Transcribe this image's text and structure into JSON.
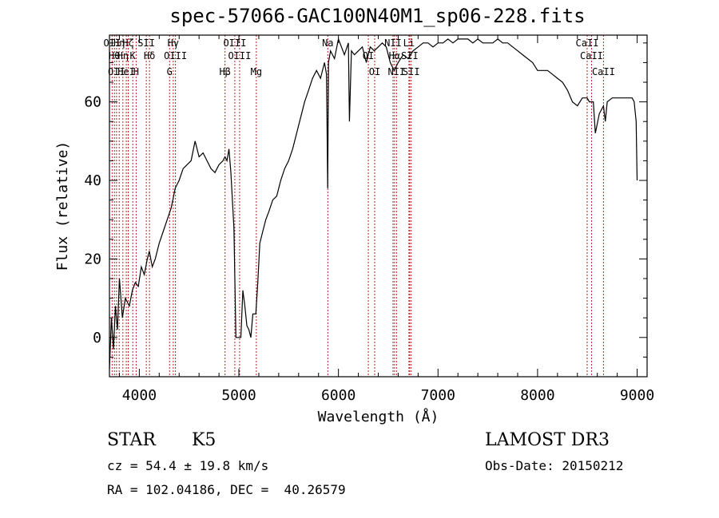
{
  "header": {
    "title": "spec-57066-GAC100N40M1_sp06-228.fits"
  },
  "info": {
    "class": "STAR",
    "subclass": "K5",
    "survey": "LAMOST DR3",
    "cz": "cz = 54.4 ± 19.8 km/s",
    "obs_date": "Obs-Date: 20150212",
    "radec": "RA = 102.04186, DEC =  40.26579"
  },
  "chart_data": {
    "type": "line",
    "title": "spec-57066-GAC100N40M1_sp06-228.fits",
    "xlabel": "Wavelength (Å)",
    "ylabel": "Flux (relative)",
    "xlim": [
      3700,
      9100
    ],
    "ylim": [
      -10,
      77
    ],
    "xticks": [
      4000,
      5000,
      6000,
      7000,
      8000,
      9000
    ],
    "yticks": [
      0,
      20,
      40,
      60
    ],
    "grid": false,
    "line_color": "#000000",
    "marker_color": "#b22222",
    "series": [
      {
        "x": [
          3700,
          3720,
          3740,
          3760,
          3780,
          3800,
          3830,
          3860,
          3900,
          3930,
          3960,
          3990,
          4020,
          4050,
          4080,
          4100,
          4130,
          4160,
          4200,
          4240,
          4280,
          4320,
          4360,
          4400,
          4440,
          4480,
          4520,
          4560,
          4600,
          4640,
          4680,
          4720,
          4760,
          4800,
          4840,
          4860,
          4880,
          4900,
          4920,
          4950,
          4970,
          4990,
          5000,
          5020,
          5040,
          5060,
          5080,
          5100,
          5120,
          5140,
          5170,
          5190,
          5210,
          5240,
          5270,
          5300,
          5340,
          5380,
          5420,
          5460,
          5500,
          5540,
          5580,
          5620,
          5660,
          5700,
          5740,
          5780,
          5820,
          5860,
          5880,
          5892,
          5900,
          5920,
          5960,
          6000,
          6030,
          6060,
          6100,
          6110,
          6130,
          6160,
          6200,
          6240,
          6280,
          6320,
          6360,
          6400,
          6440,
          6480,
          6520,
          6560,
          6600,
          6650,
          6700,
          6750,
          6800,
          6850,
          6900,
          6950,
          7000,
          7050,
          7100,
          7150,
          7200,
          7250,
          7300,
          7350,
          7400,
          7450,
          7500,
          7550,
          7600,
          7650,
          7700,
          7750,
          7800,
          7850,
          7900,
          7950,
          8000,
          8050,
          8100,
          8150,
          8200,
          8250,
          8300,
          8350,
          8400,
          8450,
          8498,
          8520,
          8542,
          8560,
          8580,
          8620,
          8662,
          8680,
          8700,
          8750,
          8800,
          8850,
          8900,
          8950,
          8970,
          8990,
          9000
        ],
        "y": [
          -8,
          5,
          -3,
          8,
          2,
          15,
          5,
          10,
          8,
          12,
          14,
          13,
          18,
          16,
          20,
          22,
          18,
          20,
          24,
          27,
          30,
          33,
          38,
          40,
          43,
          44,
          45,
          50,
          46,
          47,
          45,
          43,
          42,
          44,
          45,
          46,
          45,
          48,
          42,
          28,
          0,
          0,
          0,
          0,
          12,
          8,
          3,
          2,
          0,
          6,
          6,
          14,
          24,
          27,
          30,
          32,
          35,
          36,
          40,
          43,
          45,
          48,
          52,
          56,
          60,
          63,
          66,
          68,
          66,
          70,
          67,
          38,
          70,
          73,
          71,
          76,
          74,
          72,
          75,
          55,
          73,
          72,
          73,
          74,
          70,
          74,
          73,
          74,
          75,
          74,
          70,
          68,
          70,
          72,
          71,
          73,
          74,
          75,
          75,
          74,
          75,
          75,
          76,
          75,
          76,
          76,
          76,
          75,
          76,
          75,
          75,
          75,
          76,
          75,
          75,
          74,
          73,
          72,
          71,
          70,
          68,
          68,
          68,
          67,
          66,
          65,
          63,
          60,
          59,
          61,
          61,
          60,
          60,
          60,
          52,
          57,
          59,
          55,
          60,
          61,
          61,
          61,
          61,
          61,
          60,
          55,
          40
        ]
      }
    ],
    "line_markers": [
      {
        "x": 3727,
        "label": "OII"
      },
      {
        "x": 3750,
        "label": "Hθ"
      },
      {
        "x": 3771,
        "label": "OII"
      },
      {
        "x": 3798,
        "label": "Hη"
      },
      {
        "x": 3835,
        "label": "Hη"
      },
      {
        "x": 3869,
        "label": "HeI"
      },
      {
        "x": 3889,
        "label": "Hζ"
      },
      {
        "x": 3934,
        "label": "K"
      },
      {
        "x": 3968,
        "label": "H"
      },
      {
        "x": 4070,
        "label": "SII"
      },
      {
        "x": 4102,
        "label": "Hδ"
      },
      {
        "x": 4304,
        "label": "G"
      },
      {
        "x": 4341,
        "label": "Hγ"
      },
      {
        "x": 4363,
        "label": "OIII"
      },
      {
        "x": 4861,
        "label": "Hβ"
      },
      {
        "x": 4959,
        "label": "OIII"
      },
      {
        "x": 5007,
        "label": "OIII"
      },
      {
        "x": 5175,
        "label": "Mg"
      },
      {
        "x": 5893,
        "label": "Na"
      },
      {
        "x": 6300,
        "label": "OI"
      },
      {
        "x": 6364,
        "label": "OI"
      },
      {
        "x": 6548,
        "label": "NII"
      },
      {
        "x": 6563,
        "label": "Hα"
      },
      {
        "x": 6583,
        "label": "NII"
      },
      {
        "x": 6708,
        "label": "Li"
      },
      {
        "x": 6716,
        "label": "SII"
      },
      {
        "x": 6731,
        "label": "SII"
      },
      {
        "x": 8498,
        "label": "CaII"
      },
      {
        "x": 8542,
        "label": "CaII"
      },
      {
        "x": 8662,
        "label": "CaII"
      }
    ]
  }
}
